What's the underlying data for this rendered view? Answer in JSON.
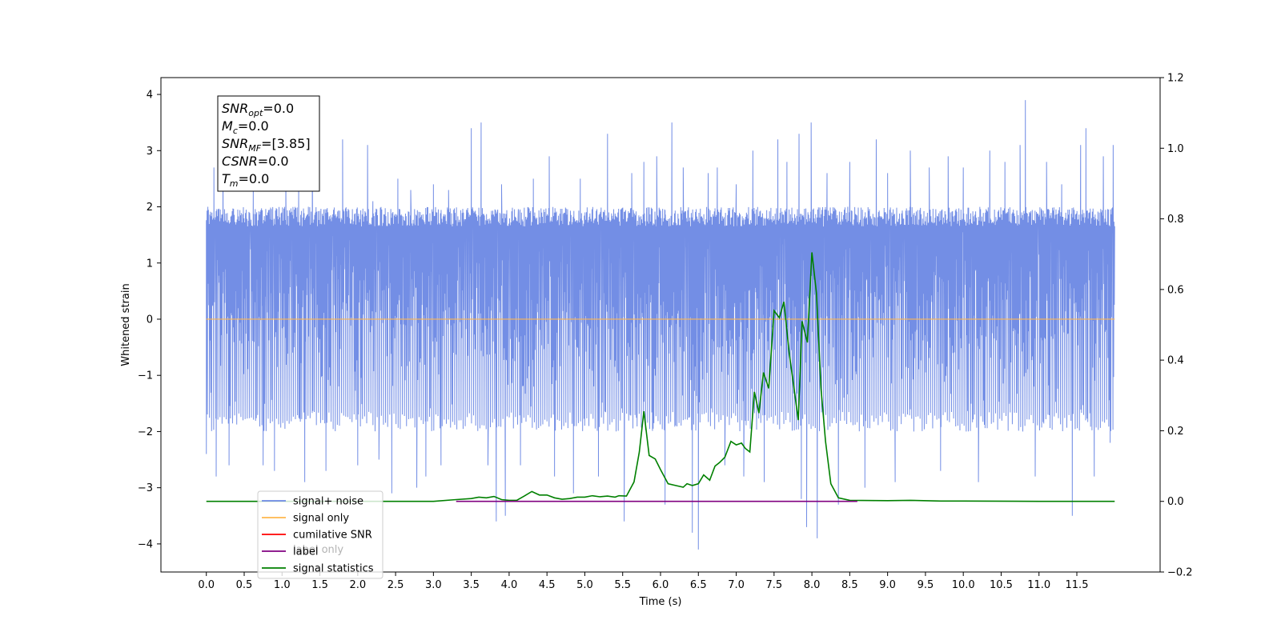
{
  "chart_data": {
    "type": "line",
    "xlabel": "Time (s)",
    "ylabel": "Whitened strain",
    "xlim": [
      -0.6,
      12.6
    ],
    "ylim": [
      -4.5,
      4.3
    ],
    "y2lim": [
      -0.2,
      1.2
    ],
    "x_ticks": [
      0.0,
      0.5,
      1.0,
      1.5,
      2.0,
      2.5,
      3.0,
      3.5,
      4.0,
      4.5,
      5.0,
      5.5,
      6.0,
      6.5,
      7.0,
      7.5,
      8.0,
      8.5,
      9.0,
      9.5,
      10.0,
      10.5,
      11.0,
      11.5
    ],
    "x_tick_labels": [
      "0.0",
      "0.5",
      "1.0",
      "1.5",
      "2.0",
      "2.5",
      "3.0",
      "3.5",
      "4.0",
      "4.5",
      "5.0",
      "5.5",
      "6.0",
      "6.5",
      "7.0",
      "7.5",
      "8.0",
      "8.5",
      "9.0",
      "9.5",
      "10.0",
      "10.5",
      "11.0",
      "11.5"
    ],
    "y_ticks": [
      4,
      3,
      2,
      1,
      0,
      -1,
      -2,
      -3,
      -4
    ],
    "y_tick_labels": [
      "4",
      "3",
      "2",
      "1",
      "0",
      "−1",
      "−2",
      "−3",
      "−4"
    ],
    "y2_ticks": [
      1.2,
      1.0,
      0.8,
      0.6,
      0.4,
      0.2,
      0.0,
      -0.2
    ],
    "y2_tick_labels": [
      "1.2",
      "1.0",
      "0.8",
      "0.6",
      "0.4",
      "0.2",
      "0.0",
      "−0.2"
    ],
    "grid": false,
    "legend_position": "lower-left",
    "series": [
      {
        "name": "signal+ noise",
        "color": "#6b88e4",
        "axis": "left",
        "x_range": [
          0.0,
          12.0
        ],
        "envelope_upper": 2.0,
        "envelope_lower": -2.0,
        "spikes": [
          [
            0.0,
            1.6
          ],
          [
            0.0,
            -2.4
          ],
          [
            0.02,
            2.0
          ],
          [
            0.1,
            2.7
          ],
          [
            0.13,
            -2.8
          ],
          [
            0.22,
            2.9
          ],
          [
            0.3,
            -2.6
          ],
          [
            0.62,
            2.4
          ],
          [
            0.75,
            -2.6
          ],
          [
            0.9,
            -2.7
          ],
          [
            1.05,
            2.5
          ],
          [
            1.22,
            2.3
          ],
          [
            1.3,
            -2.9
          ],
          [
            1.4,
            3.0
          ],
          [
            1.58,
            -2.7
          ],
          [
            1.8,
            3.2
          ],
          [
            2.0,
            -2.6
          ],
          [
            2.13,
            3.1
          ],
          [
            2.2,
            2.1
          ],
          [
            2.28,
            -2.5
          ],
          [
            2.45,
            -3.1
          ],
          [
            2.53,
            2.5
          ],
          [
            2.7,
            2.3
          ],
          [
            2.78,
            -3.0
          ],
          [
            2.9,
            -2.8
          ],
          [
            3.0,
            2.4
          ],
          [
            3.1,
            -2.6
          ],
          [
            3.2,
            2.3
          ],
          [
            3.5,
            3.4
          ],
          [
            3.63,
            3.5
          ],
          [
            3.72,
            -2.6
          ],
          [
            3.83,
            -3.6
          ],
          [
            3.9,
            2.4
          ],
          [
            3.95,
            -3.5
          ],
          [
            4.15,
            -2.6
          ],
          [
            4.32,
            2.5
          ],
          [
            4.53,
            2.9
          ],
          [
            4.6,
            -2.8
          ],
          [
            4.85,
            -3.1
          ],
          [
            4.94,
            2.5
          ],
          [
            5.18,
            -2.8
          ],
          [
            5.3,
            3.3
          ],
          [
            5.52,
            -3.6
          ],
          [
            5.62,
            2.6
          ],
          [
            5.78,
            2.8
          ],
          [
            5.95,
            2.9
          ],
          [
            6.06,
            -3.3
          ],
          [
            6.15,
            3.5
          ],
          [
            6.3,
            2.7
          ],
          [
            6.42,
            -3.8
          ],
          [
            6.5,
            -4.1
          ],
          [
            6.63,
            2.6
          ],
          [
            6.75,
            2.7
          ],
          [
            6.85,
            -2.6
          ],
          [
            7.0,
            2.4
          ],
          [
            7.1,
            -2.8
          ],
          [
            7.22,
            3.0
          ],
          [
            7.37,
            -2.9
          ],
          [
            7.55,
            3.2
          ],
          [
            7.67,
            2.8
          ],
          [
            7.83,
            3.3
          ],
          [
            7.86,
            -3.2
          ],
          [
            7.93,
            -3.7
          ],
          [
            7.99,
            3.5
          ],
          [
            8.07,
            -3.9
          ],
          [
            8.2,
            2.6
          ],
          [
            8.35,
            -3.3
          ],
          [
            8.5,
            2.8
          ],
          [
            8.7,
            -3.0
          ],
          [
            8.85,
            3.2
          ],
          [
            9.0,
            2.6
          ],
          [
            9.1,
            -2.9
          ],
          [
            9.3,
            3.0
          ],
          [
            9.55,
            2.7
          ],
          [
            9.7,
            -2.7
          ],
          [
            9.8,
            2.9
          ],
          [
            10.0,
            2.7
          ],
          [
            10.2,
            -2.9
          ],
          [
            10.35,
            3.0
          ],
          [
            10.55,
            2.8
          ],
          [
            10.75,
            3.1
          ],
          [
            10.82,
            3.9
          ],
          [
            10.95,
            -2.8
          ],
          [
            11.1,
            2.8
          ],
          [
            11.3,
            2.4
          ],
          [
            11.44,
            -3.5
          ],
          [
            11.55,
            3.1
          ],
          [
            11.62,
            3.4
          ],
          [
            11.73,
            -2.8
          ],
          [
            11.85,
            2.9
          ],
          [
            11.94,
            -2.2
          ],
          [
            11.98,
            3.1
          ]
        ]
      },
      {
        "name": "signal only",
        "color": "#ffb74d",
        "axis": "left",
        "x": [
          0.0,
          12.0
        ],
        "y": [
          0.0,
          0.0
        ]
      },
      {
        "name": "cumilative SNR",
        "color": "#ff0000",
        "axis": "right",
        "x": [],
        "y": []
      },
      {
        "name": "label",
        "color": "#800080",
        "axis": "right",
        "x": [
          3.3,
          8.6
        ],
        "y": [
          0.0,
          0.0
        ]
      },
      {
        "name": "signal statistics",
        "color": "#008000",
        "axis": "right",
        "x": [
          0.0,
          3.0,
          3.3,
          3.5,
          3.6,
          3.7,
          3.8,
          3.9,
          4.0,
          4.1,
          4.2,
          4.3,
          4.4,
          4.5,
          4.6,
          4.7,
          4.8,
          4.9,
          5.0,
          5.1,
          5.2,
          5.3,
          5.4,
          5.45,
          5.55,
          5.65,
          5.72,
          5.78,
          5.85,
          5.93,
          6.0,
          6.1,
          6.2,
          6.3,
          6.35,
          6.42,
          6.5,
          6.57,
          6.65,
          6.72,
          6.78,
          6.85,
          6.93,
          7.0,
          7.07,
          7.12,
          7.18,
          7.24,
          7.3,
          7.36,
          7.43,
          7.5,
          7.57,
          7.63,
          7.7,
          7.77,
          7.82,
          7.87,
          7.94,
          8.0,
          8.06,
          8.12,
          8.18,
          8.25,
          8.35,
          8.5,
          9.0,
          9.3,
          9.7,
          10.0,
          11.0,
          12.0
        ],
        "y": [
          0.0,
          0.0,
          0.005,
          0.008,
          0.012,
          0.01,
          0.014,
          0.005,
          0.003,
          0.003,
          0.015,
          0.028,
          0.018,
          0.018,
          0.01,
          0.006,
          0.008,
          0.012,
          0.012,
          0.016,
          0.013,
          0.015,
          0.012,
          0.016,
          0.015,
          0.055,
          0.14,
          0.255,
          0.13,
          0.12,
          0.09,
          0.05,
          0.045,
          0.04,
          0.05,
          0.045,
          0.05,
          0.075,
          0.06,
          0.1,
          0.11,
          0.125,
          0.17,
          0.16,
          0.165,
          0.15,
          0.14,
          0.31,
          0.25,
          0.365,
          0.32,
          0.54,
          0.52,
          0.565,
          0.42,
          0.31,
          0.23,
          0.51,
          0.45,
          0.705,
          0.59,
          0.32,
          0.17,
          0.05,
          0.01,
          0.003,
          0.002,
          0.003,
          0.001,
          0.001,
          0.0,
          0.0
        ]
      },
      {
        "name": "label only",
        "color": "#000000",
        "axis": "right",
        "x": [],
        "y": []
      }
    ],
    "info_box": [
      {
        "base": "SNR",
        "sub": "opt",
        "value": "=0.0"
      },
      {
        "base": "M",
        "sub": "c",
        "value": "=0.0"
      },
      {
        "base": "SNR",
        "sub": "MF",
        "value": "=[3.85]"
      },
      {
        "base": "CSNR",
        "sub": "",
        "value": "=0.0"
      },
      {
        "base": "T",
        "sub": "m",
        "value": "=0.0"
      }
    ],
    "legend": [
      "signal+ noise",
      "signal only",
      "cumilative SNR",
      "label",
      "signal statistics"
    ],
    "legend_colors": [
      "#6b88e4",
      "#ffb74d",
      "#ff0000",
      "#800080",
      "#008000"
    ],
    "legend_ghost_text": "label only"
  }
}
